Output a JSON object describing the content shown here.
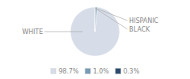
{
  "chart_data": {
    "type": "pie",
    "categories": [
      "WHITE",
      "HISPANIC",
      "BLACK"
    ],
    "values": [
      98.7,
      1.0,
      0.3
    ],
    "value_labels": [
      "98.7%",
      "1.0%",
      "0.3%"
    ],
    "colors": [
      "#d6dde8",
      "#7a9bb5",
      "#2d4d6e"
    ],
    "legend": "bottom"
  }
}
